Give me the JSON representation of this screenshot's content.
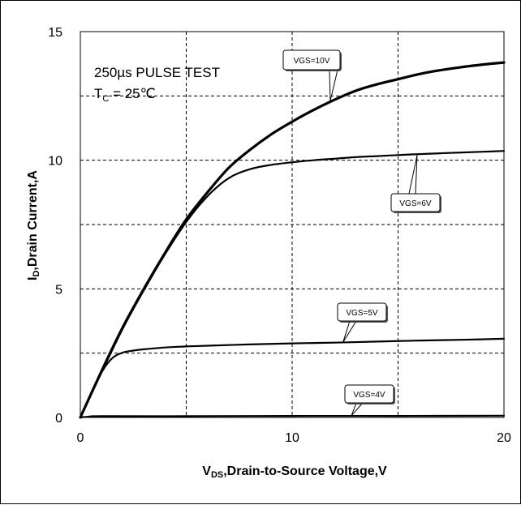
{
  "chart_data": {
    "type": "line",
    "xlabel": {
      "main": "V",
      "sub": "DS",
      "rest": ",Drain-to-Source Voltage,V"
    },
    "ylabel": {
      "main": "I",
      "sub": "D",
      "rest": ",Drain Current,A"
    },
    "xlim": [
      0,
      20
    ],
    "ylim": [
      0,
      15
    ],
    "xticks": [
      0,
      10,
      20
    ],
    "yticks": [
      0,
      5,
      10,
      15
    ],
    "grid": true,
    "annotation": {
      "line1": "250µs PULSE TEST",
      "line2_main": "T",
      "line2_sub": "C",
      "line2_rest": " = 25℃"
    },
    "series": [
      {
        "name": "VGS=10V",
        "stroke_width": 3.2,
        "x": [
          0,
          1,
          2,
          3,
          4,
          5,
          6,
          7,
          8,
          9,
          10,
          11,
          12,
          13,
          14,
          15,
          16,
          17,
          18,
          19,
          20
        ],
        "y": [
          0,
          1.8,
          3.5,
          5.0,
          6.4,
          7.7,
          8.75,
          9.7,
          10.4,
          11.0,
          11.5,
          11.95,
          12.35,
          12.7,
          12.95,
          13.15,
          13.35,
          13.5,
          13.62,
          13.72,
          13.8
        ]
      },
      {
        "name": "VGS=6V",
        "stroke_width": 2.2,
        "x": [
          0,
          1,
          2,
          3,
          4,
          5,
          6,
          7,
          8,
          9,
          10,
          11,
          12,
          13,
          14,
          15,
          16,
          17,
          18,
          19,
          20
        ],
        "y": [
          0,
          1.75,
          3.45,
          4.95,
          6.35,
          7.6,
          8.6,
          9.3,
          9.65,
          9.82,
          9.92,
          10.0,
          10.06,
          10.12,
          10.16,
          10.2,
          10.24,
          10.27,
          10.3,
          10.33,
          10.36
        ]
      },
      {
        "name": "VGS=5V",
        "stroke_width": 2.2,
        "x": [
          0,
          0.5,
          1.0,
          1.5,
          2.0,
          2.5,
          3,
          4,
          5,
          6,
          8,
          10,
          12,
          14,
          16,
          18,
          20
        ],
        "y": [
          0,
          0.9,
          1.75,
          2.3,
          2.52,
          2.6,
          2.65,
          2.72,
          2.76,
          2.79,
          2.84,
          2.88,
          2.91,
          2.95,
          2.99,
          3.02,
          3.06
        ]
      },
      {
        "name": "VGS=4V",
        "stroke_width": 2.2,
        "x": [
          0,
          0.5,
          1,
          5,
          10,
          15,
          20
        ],
        "y": [
          0,
          0.04,
          0.05,
          0.05,
          0.06,
          0.06,
          0.07
        ]
      }
    ],
    "callouts": [
      {
        "label": "VGS=10V",
        "series": "VGS=10V",
        "point": [
          11.8,
          12.3
        ]
      },
      {
        "label": "VGS=6V",
        "series": "VGS=6V",
        "point": [
          15.9,
          10.2
        ]
      },
      {
        "label": "VGS=5V",
        "series": "VGS=5V",
        "point": [
          12.4,
          2.92
        ]
      },
      {
        "label": "VGS=4V",
        "series": "VGS=4V",
        "point": [
          12.8,
          0.07
        ]
      }
    ]
  }
}
